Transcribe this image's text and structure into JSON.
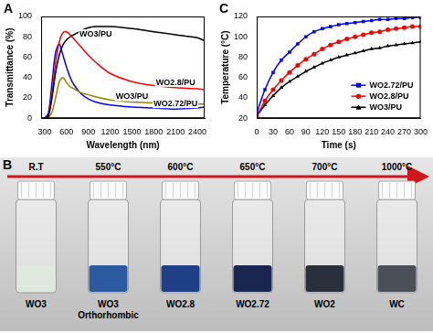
{
  "chart_data": [
    {
      "panel": "A",
      "type": "line",
      "x_label": "Wavelength (nm)",
      "y_label": "Transmittance (%)",
      "x": [
        300,
        350,
        400,
        450,
        500,
        550,
        600,
        650,
        700,
        800,
        900,
        1000,
        1200,
        1500,
        1800,
        2100,
        2400,
        2500
      ],
      "series": [
        {
          "name": "WO3/PU",
          "color": "#000000",
          "marker": "none",
          "values": [
            0,
            2,
            20,
            45,
            62,
            72,
            77,
            80,
            82,
            86,
            89,
            90,
            90,
            88,
            85,
            82,
            79,
            76
          ]
        },
        {
          "name": "WO2.8/PU",
          "color": "#ff0000",
          "marker": "none",
          "values": [
            0,
            3,
            25,
            55,
            75,
            84,
            85,
            82,
            78,
            70,
            62,
            55,
            44,
            36,
            32,
            30,
            29,
            28
          ]
        },
        {
          "name": "WO3/PU",
          "color": "#8b8b00",
          "marker": "none",
          "values": [
            0,
            1,
            6,
            20,
            36,
            40,
            35,
            31,
            29,
            25,
            23,
            21,
            18,
            16,
            15,
            14,
            14,
            14
          ]
        },
        {
          "name": "WO2.72/PU",
          "color": "#0000ff",
          "marker": "none",
          "values": [
            0,
            5,
            35,
            65,
            73,
            62,
            50,
            40,
            33,
            24,
            19,
            16,
            13,
            11,
            10,
            9,
            10,
            11
          ]
        }
      ],
      "xlim": [
        250,
        2500
      ],
      "xticks": [
        300,
        600,
        900,
        1200,
        1500,
        1800,
        2100,
        2400
      ],
      "ylim": [
        0,
        100
      ],
      "yticks": [
        0,
        20,
        40,
        60,
        80,
        100
      ],
      "grid": false
    },
    {
      "panel": "C",
      "type": "line",
      "x_label": "Time (s)",
      "y_label": "Temperature (°C)",
      "x": [
        0,
        15,
        30,
        45,
        60,
        75,
        90,
        105,
        120,
        135,
        150,
        165,
        180,
        195,
        210,
        225,
        240,
        255,
        270,
        285,
        300
      ],
      "series": [
        {
          "name": "WO2.72/PU",
          "color": "#0000ff",
          "marker": "square",
          "values": [
            25,
            48,
            65,
            77,
            85,
            93,
            100,
            105,
            108,
            110,
            112,
            113,
            114,
            115,
            116,
            117,
            117,
            118,
            118,
            119,
            119
          ]
        },
        {
          "name": "WO2.8/PU",
          "color": "#ff0000",
          "marker": "circle",
          "values": [
            22,
            37,
            48,
            57,
            65,
            72,
            78,
            83,
            88,
            92,
            95,
            98,
            100,
            102,
            104,
            105,
            107,
            108,
            109,
            110,
            110
          ]
        },
        {
          "name": "WO3/PU",
          "color": "#000000",
          "marker": "triangle",
          "values": [
            22,
            33,
            42,
            50,
            56,
            61,
            66,
            70,
            74,
            77,
            80,
            82,
            84,
            86,
            88,
            89,
            91,
            92,
            93,
            94,
            95
          ]
        }
      ],
      "xlim": [
        0,
        300
      ],
      "xticks": [
        0,
        30,
        60,
        90,
        120,
        150,
        180,
        210,
        240,
        270,
        300
      ],
      "ylim": [
        20,
        120
      ],
      "yticks": [
        20,
        40,
        60,
        80,
        100,
        120
      ],
      "grid": false,
      "legend": "lower right"
    }
  ],
  "photo": {
    "panel": "B",
    "temperatures": [
      "R.T",
      "550°C",
      "600°C",
      "650°C",
      "700°C",
      "1000°C"
    ],
    "products": [
      "WO3",
      "WO3 Orthorhombic",
      "WO2.8",
      "WO2.72",
      "WO2",
      "WC"
    ]
  }
}
